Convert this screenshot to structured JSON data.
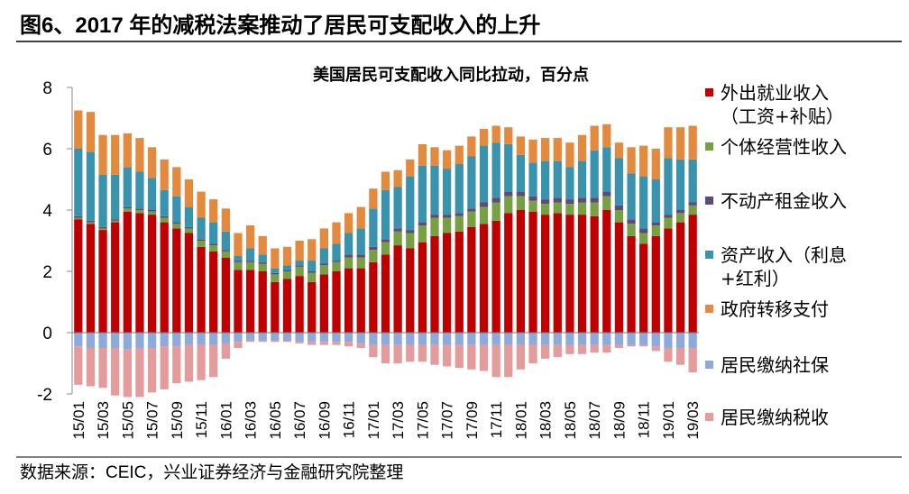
{
  "header": {
    "title": "图6、2017 年的减税法案推动了居民可支配收入的上升"
  },
  "source": "数据来源：CEIC，兴业证券经济与金融研究院整理",
  "chart_data": {
    "type": "stacked_bar",
    "title": "美国居民可支配收入同比拉动，百分点",
    "categories": [
      "15/01",
      null,
      "15/03",
      null,
      "15/05",
      null,
      "15/07",
      null,
      "15/09",
      null,
      "15/11",
      null,
      "16/01",
      null,
      "16/03",
      null,
      "16/05",
      null,
      "16/07",
      null,
      "16/09",
      null,
      "16/11",
      null,
      "17/01",
      null,
      "17/03",
      null,
      "17/05",
      null,
      "17/07",
      null,
      "17/09",
      null,
      "17/11",
      null,
      "18/01",
      null,
      "18/03",
      null,
      "18/05",
      null,
      "18/07",
      null,
      "18/09",
      null,
      "18/11",
      null,
      "19/01",
      null,
      "19/03"
    ],
    "ylim": [
      -2,
      8
    ],
    "yticks": [
      -2,
      0,
      2,
      4,
      6,
      8
    ],
    "grid": false,
    "series": [
      {
        "name": "外出就业收入（工资+补贴）",
        "color": "#c00000",
        "values": [
          3.7,
          3.55,
          3.35,
          3.6,
          3.95,
          3.9,
          3.85,
          3.6,
          3.4,
          3.25,
          2.8,
          2.65,
          2.45,
          2.05,
          2.05,
          2.0,
          1.65,
          1.75,
          1.85,
          1.65,
          1.9,
          2.0,
          2.1,
          2.1,
          2.3,
          2.55,
          2.85,
          2.75,
          2.95,
          3.15,
          3.25,
          3.3,
          3.45,
          3.55,
          3.65,
          3.9,
          4.0,
          3.95,
          3.85,
          3.9,
          3.85,
          3.85,
          3.8,
          4.0,
          3.6,
          3.15,
          2.9,
          3.15,
          3.4,
          3.6,
          3.85
        ]
      },
      {
        "name": "个体经营性收入",
        "color": "#77a043",
        "values": [
          0.05,
          0.05,
          0.05,
          0.05,
          0.1,
          0.1,
          0.1,
          0.15,
          0.15,
          0.15,
          0.2,
          0.2,
          0.2,
          0.25,
          0.25,
          0.25,
          0.25,
          0.25,
          0.3,
          0.3,
          0.3,
          0.3,
          0.35,
          0.35,
          0.4,
          0.4,
          0.45,
          0.5,
          0.55,
          0.6,
          0.5,
          0.5,
          0.5,
          0.55,
          0.6,
          0.55,
          0.45,
          0.35,
          0.35,
          0.35,
          0.35,
          0.4,
          0.45,
          0.45,
          0.4,
          0.4,
          0.35,
          0.35,
          0.35,
          0.3,
          0.3
        ]
      },
      {
        "name": "不动产租金收入",
        "color": "#604a7b",
        "values": [
          0.05,
          0.05,
          0.05,
          0.05,
          0.05,
          0.05,
          0.05,
          0.05,
          0.05,
          0.05,
          0.05,
          0.05,
          0.05,
          0.05,
          0.05,
          0.05,
          0.05,
          0.05,
          0.05,
          0.05,
          0.05,
          0.05,
          0.1,
          0.1,
          0.1,
          0.1,
          0.1,
          0.1,
          0.1,
          0.1,
          0.1,
          0.1,
          0.1,
          0.15,
          0.15,
          0.15,
          0.15,
          0.15,
          0.15,
          0.15,
          0.15,
          0.15,
          0.15,
          0.15,
          0.15,
          0.15,
          0.15,
          0.1,
          0.1,
          0.1,
          0.1
        ]
      },
      {
        "name": "资产收入（利息+红利）",
        "color": "#3a93ad",
        "values": [
          2.2,
          2.25,
          1.7,
          1.45,
          1.3,
          1.2,
          1.05,
          0.85,
          0.85,
          0.65,
          0.7,
          0.7,
          0.6,
          0.15,
          0.4,
          0.25,
          0.15,
          0.15,
          0.15,
          0.35,
          0.5,
          0.55,
          0.7,
          0.85,
          1.25,
          1.6,
          1.35,
          1.75,
          1.85,
          1.6,
          1.5,
          1.6,
          1.7,
          1.85,
          1.8,
          1.55,
          1.2,
          1.1,
          1.25,
          1.2,
          1.05,
          1.2,
          1.55,
          1.45,
          1.55,
          1.5,
          1.7,
          1.4,
          1.85,
          1.65,
          1.4
        ]
      },
      {
        "name": "政府转移支付",
        "color": "#e38a3e",
        "values": [
          1.25,
          1.3,
          1.3,
          1.3,
          1.1,
          1.1,
          1.0,
          1.0,
          0.95,
          0.9,
          0.85,
          0.75,
          0.75,
          0.75,
          0.75,
          0.6,
          0.65,
          0.6,
          0.65,
          0.7,
          0.65,
          0.7,
          0.65,
          0.7,
          0.65,
          0.6,
          0.55,
          0.55,
          0.7,
          0.6,
          0.6,
          0.6,
          0.65,
          0.55,
          0.55,
          0.55,
          0.6,
          0.75,
          0.75,
          0.75,
          0.8,
          0.85,
          0.8,
          0.75,
          0.5,
          0.85,
          1.0,
          1.0,
          1.0,
          1.05,
          1.1
        ]
      },
      {
        "name": "居民缴纳社保",
        "color": "#8eaadb",
        "values": [
          -0.45,
          -0.5,
          -0.5,
          -0.5,
          -0.55,
          -0.5,
          -0.5,
          -0.45,
          -0.45,
          -0.4,
          -0.4,
          -0.4,
          -0.35,
          -0.3,
          -0.25,
          -0.25,
          -0.25,
          -0.25,
          -0.3,
          -0.3,
          -0.3,
          -0.3,
          -0.3,
          -0.35,
          -0.4,
          -0.4,
          -0.4,
          -0.4,
          -0.4,
          -0.4,
          -0.4,
          -0.4,
          -0.4,
          -0.4,
          -0.4,
          -0.4,
          -0.4,
          -0.4,
          -0.4,
          -0.4,
          -0.4,
          -0.4,
          -0.4,
          -0.4,
          -0.4,
          -0.4,
          -0.4,
          -0.45,
          -0.5,
          -0.5,
          -0.5
        ]
      },
      {
        "name": "居民缴纳税收",
        "color": "#e39b9b",
        "values": [
          -1.25,
          -1.25,
          -1.3,
          -1.55,
          -1.55,
          -1.6,
          -1.45,
          -1.4,
          -1.2,
          -1.2,
          -1.15,
          -1.05,
          -0.5,
          -0.2,
          -0.05,
          -0.05,
          -0.05,
          -0.05,
          -0.05,
          -0.1,
          -0.1,
          -0.1,
          -0.15,
          -0.15,
          -0.4,
          -0.6,
          -0.6,
          -0.55,
          -0.55,
          -0.65,
          -0.7,
          -0.75,
          -0.8,
          -0.85,
          -1.05,
          -1.05,
          -0.8,
          -0.6,
          -0.45,
          -0.4,
          -0.3,
          -0.3,
          -0.25,
          -0.25,
          -0.1,
          -0.05,
          -0.05,
          -0.15,
          -0.45,
          -0.55,
          -0.8
        ]
      }
    ]
  }
}
